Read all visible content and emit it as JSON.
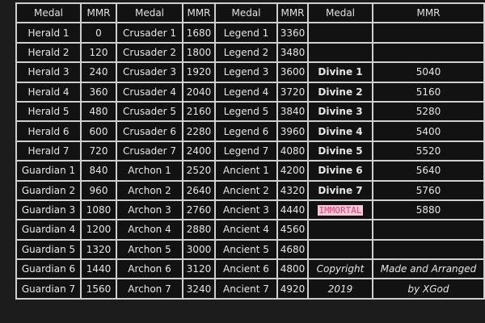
{
  "headers": [
    "Medal",
    "MMR",
    "Medal",
    "MMR",
    "Medal",
    "MMR",
    "Medal",
    "MMR"
  ],
  "rows": [
    [
      "Herald 1",
      "0",
      "Crusader 1",
      "1680",
      "Legend 1",
      "3360",
      "",
      ""
    ],
    [
      "Herald 2",
      "120",
      "Crusader 2",
      "1800",
      "Legend 2",
      "3480",
      "",
      ""
    ],
    [
      "Herald 3",
      "240",
      "Crusader 3",
      "1920",
      "Legend 3",
      "3600",
      "Divine 1",
      "5040"
    ],
    [
      "Herald 4",
      "360",
      "Crusader 4",
      "2040",
      "Legend 4",
      "3720",
      "Divine 2",
      "5160"
    ],
    [
      "Herald 5",
      "480",
      "Crusader 5",
      "2160",
      "Legend 5",
      "3840",
      "Divine 3",
      "5280"
    ],
    [
      "Herald 6",
      "600",
      "Crusader 6",
      "2280",
      "Legend 6",
      "3960",
      "Divine 4",
      "5400"
    ],
    [
      "Herald 7",
      "720",
      "Crusader 7",
      "2400",
      "Legend 7",
      "4080",
      "Divine 5",
      "5520"
    ],
    [
      "Guardian 1",
      "840",
      "Archon 1",
      "2520",
      "Ancient 1",
      "4200",
      "Divine 6",
      "5640"
    ],
    [
      "Guardian 2",
      "960",
      "Archon 2",
      "2640",
      "Ancient 2",
      "4320",
      "Divine 7",
      "5760"
    ],
    [
      "Guardian 3",
      "1080",
      "Archon 3",
      "2760",
      "Ancient 3",
      "4440",
      "IMMORTAL",
      "5880"
    ],
    [
      "Guardian 4",
      "1200",
      "Archon 4",
      "2880",
      "Ancient 4",
      "4560",
      "",
      ""
    ],
    [
      "Guardian 5",
      "1320",
      "Archon 5",
      "3000",
      "Ancient 5",
      "4680",
      "",
      ""
    ],
    [
      "Guardian 6",
      "1440",
      "Archon 6",
      "3120",
      "Ancient 6",
      "4800",
      "Copyright",
      "Made and Arranged"
    ],
    [
      "Guardian 7",
      "1560",
      "Archon 7",
      "3240",
      "Ancient 7",
      "4920",
      "2019",
      "by XGod"
    ]
  ],
  "colors": {
    "immortal_text": "#e0407a",
    "immortal_bg": "#f6c8d8",
    "cell_bg": "#121212",
    "border": "#cfcfcf"
  }
}
